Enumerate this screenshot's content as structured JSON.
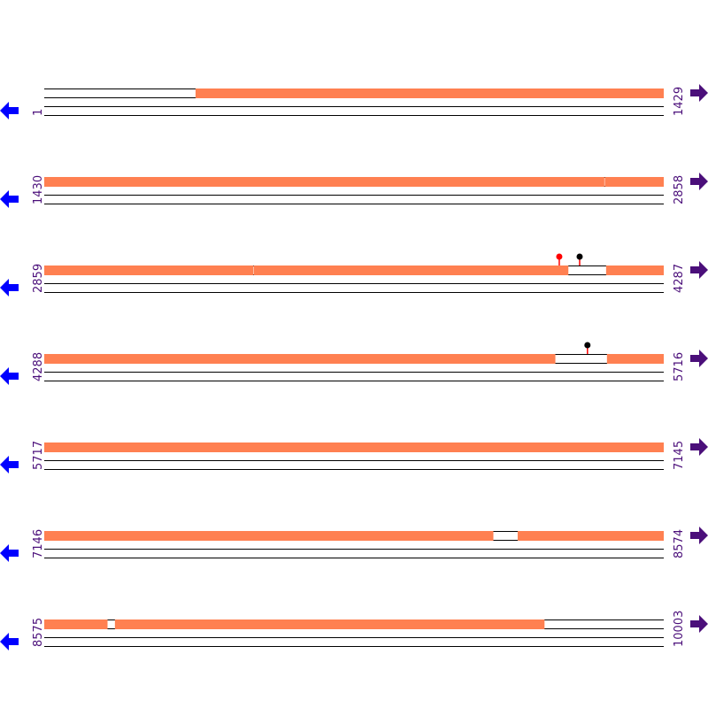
{
  "colors": {
    "coverage": "#ff8051",
    "line": "#000000",
    "label": "#4b0f7a",
    "left_arrow": "#0000ff",
    "right_arrow": "#4b0f7a",
    "pin_red": "#ff0000",
    "pin_black": "#000000"
  },
  "residues_per_row": 1429,
  "rows": [
    {
      "start": 1,
      "end": 1429,
      "label_start": "1",
      "label_end": "1429",
      "covered": [
        [
          350,
          1429
        ]
      ],
      "pins": []
    },
    {
      "start": 1430,
      "end": 2858,
      "label_start": "1430",
      "label_end": "2858",
      "covered": [
        [
          1430,
          2721
        ],
        [
          2723,
          2858
        ]
      ],
      "pins": []
    },
    {
      "start": 2859,
      "end": 4287,
      "label_start": "2859",
      "label_end": "4287",
      "covered": [
        [
          2859,
          3340
        ],
        [
          3342,
          4067
        ],
        [
          4155,
          4287
        ]
      ],
      "pins": [
        {
          "pos": 4047,
          "head": "red",
          "stem": "red"
        },
        {
          "pos": 4094,
          "head": "black",
          "stem": "red"
        }
      ]
    },
    {
      "start": 4288,
      "end": 5716,
      "label_start": "4288",
      "label_end": "5716",
      "covered": [
        [
          4288,
          5466
        ],
        [
          5586,
          5716
        ]
      ],
      "pins": [
        {
          "pos": 5541,
          "head": "black",
          "stem": "red"
        }
      ]
    },
    {
      "start": 5717,
      "end": 7145,
      "label_start": "5717",
      "label_end": "7145",
      "covered": [
        [
          5717,
          7145
        ]
      ],
      "pins": []
    },
    {
      "start": 7146,
      "end": 8574,
      "label_start": "7146",
      "label_end": "8574",
      "covered": [
        [
          7146,
          8181
        ],
        [
          8238,
          8574
        ]
      ],
      "pins": []
    },
    {
      "start": 8575,
      "end": 10003,
      "label_start": "8575",
      "label_end": "10003",
      "covered": [
        [
          8575,
          8720
        ],
        [
          8738,
          9728
        ]
      ],
      "pins": []
    }
  ]
}
